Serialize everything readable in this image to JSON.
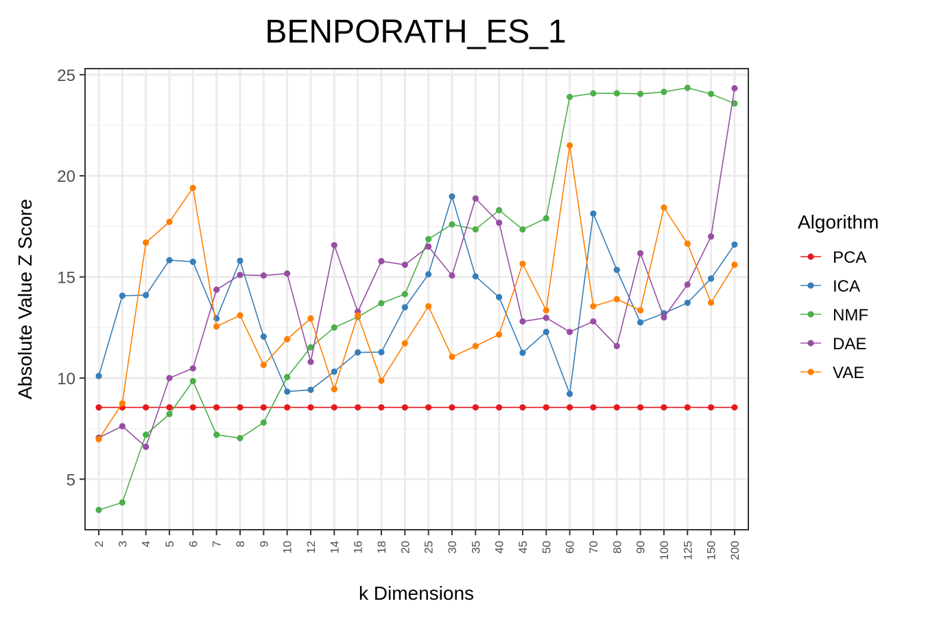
{
  "chart_data": {
    "type": "line",
    "title": "BENPORATH_ES_1",
    "xlabel": "k Dimensions",
    "ylabel": "Absolute Value Z Score",
    "ylim": [
      2.5,
      25.3
    ],
    "yticks": [
      5,
      10,
      15,
      20,
      25
    ],
    "grid": true,
    "legend": {
      "title": "Algorithm",
      "placement": "right"
    },
    "categories": [
      "2",
      "3",
      "4",
      "5",
      "6",
      "7",
      "8",
      "9",
      "10",
      "12",
      "14",
      "16",
      "18",
      "20",
      "25",
      "30",
      "35",
      "40",
      "45",
      "50",
      "60",
      "70",
      "80",
      "90",
      "100",
      "125",
      "150",
      "200"
    ],
    "series": [
      {
        "name": "PCA",
        "color": "#E41A1C",
        "values": [
          8.55,
          8.55,
          8.55,
          8.55,
          8.55,
          8.55,
          8.55,
          8.55,
          8.55,
          8.55,
          8.55,
          8.55,
          8.55,
          8.55,
          8.55,
          8.55,
          8.55,
          8.55,
          8.55,
          8.55,
          8.55,
          8.55,
          8.55,
          8.55,
          8.55,
          8.55,
          8.55,
          8.55
        ]
      },
      {
        "name": "ICA",
        "color": "#377EB8",
        "values": [
          10.1,
          14.07,
          14.1,
          15.83,
          15.75,
          12.95,
          15.8,
          12.05,
          9.33,
          9.42,
          10.32,
          11.27,
          11.28,
          13.5,
          15.13,
          18.98,
          15.03,
          14.0,
          11.25,
          12.28,
          9.22,
          18.13,
          15.35,
          12.75,
          13.2,
          13.72,
          14.92,
          16.6
        ]
      },
      {
        "name": "NMF",
        "color": "#4DAF4A",
        "values": [
          3.48,
          3.85,
          7.2,
          8.22,
          9.85,
          7.2,
          7.03,
          7.8,
          10.05,
          11.52,
          12.5,
          13.02,
          13.7,
          14.15,
          16.87,
          17.6,
          17.35,
          18.3,
          17.35,
          17.9,
          23.9,
          24.08,
          24.08,
          24.05,
          24.15,
          24.35,
          24.05,
          23.58
        ]
      },
      {
        "name": "DAE",
        "color": "#984EA3",
        "values": [
          7.05,
          7.62,
          6.6,
          10.0,
          10.48,
          14.37,
          15.1,
          15.07,
          15.17,
          10.8,
          16.57,
          13.28,
          15.78,
          15.6,
          16.5,
          15.07,
          18.88,
          17.68,
          12.8,
          12.98,
          12.28,
          12.8,
          11.58,
          16.17,
          13.0,
          14.62,
          17.0,
          24.33
        ]
      },
      {
        "name": "VAE",
        "color": "#FF7F00",
        "values": [
          6.98,
          8.75,
          16.7,
          17.72,
          19.4,
          12.55,
          13.1,
          10.65,
          11.92,
          12.95,
          9.45,
          13.1,
          9.87,
          11.72,
          13.55,
          11.05,
          11.58,
          12.15,
          15.65,
          13.35,
          21.5,
          13.55,
          13.9,
          13.35,
          18.43,
          16.65,
          13.73,
          15.6
        ]
      }
    ]
  }
}
